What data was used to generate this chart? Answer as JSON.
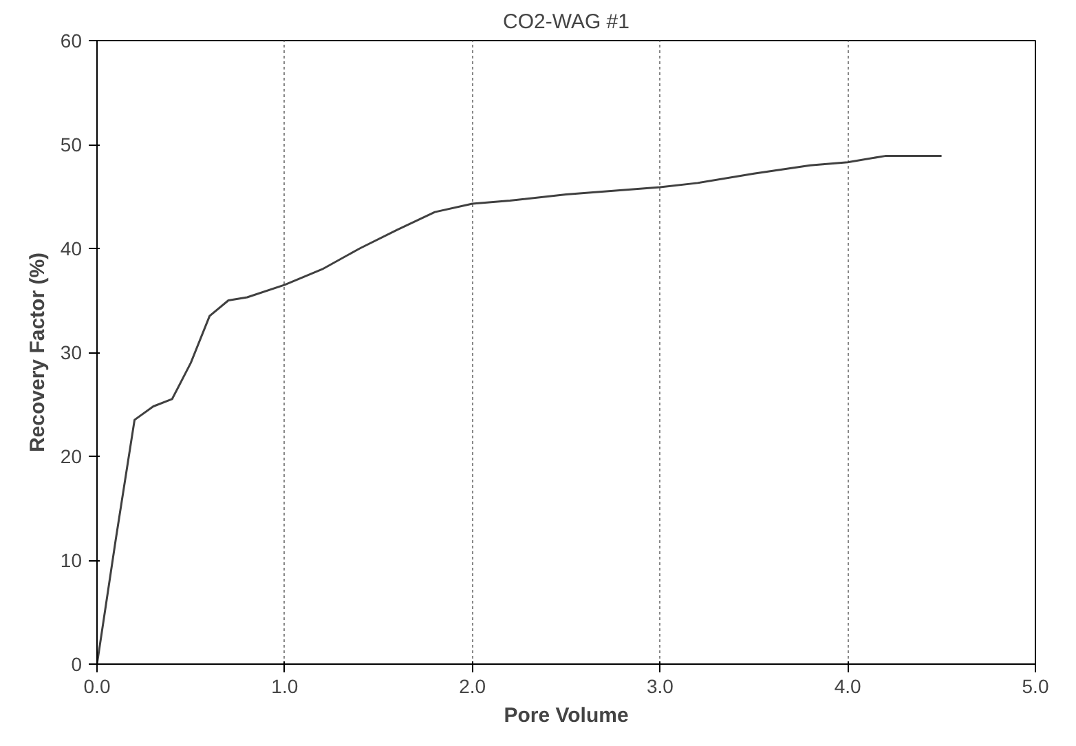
{
  "chart_data": {
    "type": "line",
    "title": "CO2-WAG #1",
    "xlabel": "Pore Volume",
    "ylabel": "Recovery Factor (%)",
    "x": [
      0,
      0.1,
      0.2,
      0.3,
      0.4,
      0.5,
      0.6,
      0.7,
      0.8,
      1.0,
      1.2,
      1.4,
      1.6,
      1.8,
      2.0,
      2.2,
      2.5,
      3.0,
      3.2,
      3.5,
      3.8,
      4.0,
      4.2,
      4.5
    ],
    "series": [
      {
        "color": "#404040",
        "values": [
          0,
          12,
          23.5,
          24.8,
          25.5,
          29,
          33.5,
          35,
          35.3,
          36.5,
          38,
          40,
          41.8,
          43.5,
          44.3,
          44.6,
          45.2,
          45.9,
          46.3,
          47.2,
          48,
          48.3,
          48.9,
          48.9
        ]
      }
    ],
    "xlim": [
      0,
      5
    ],
    "ylim": [
      0,
      60
    ],
    "xticks": [
      {
        "value": 0,
        "label": "0.0"
      },
      {
        "value": 1,
        "label": "1.0"
      },
      {
        "value": 2,
        "label": "2.0"
      },
      {
        "value": 3,
        "label": "3.0"
      },
      {
        "value": 4,
        "label": "4.0"
      },
      {
        "value": 5,
        "label": "5.0"
      }
    ],
    "yticks": [
      0,
      10,
      20,
      30,
      40,
      50,
      60
    ],
    "grid": "x",
    "marker": "none",
    "line_style": "solid"
  }
}
